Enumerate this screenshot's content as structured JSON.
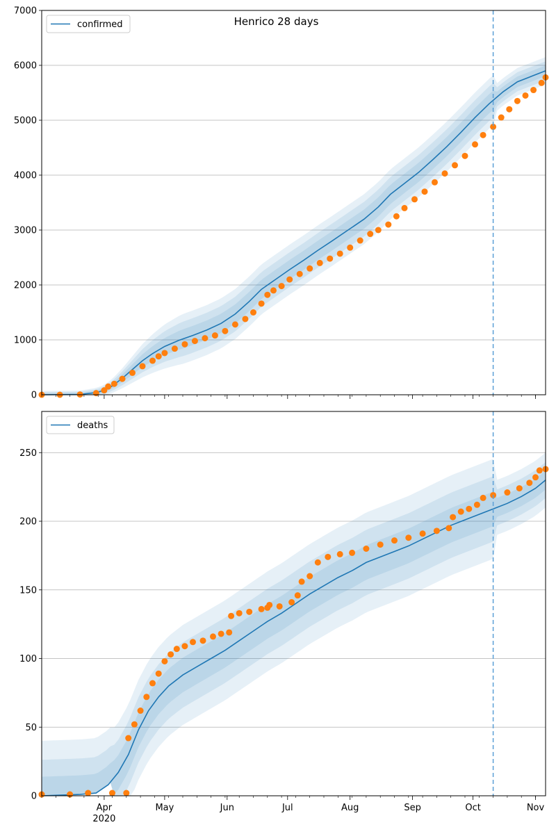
{
  "chart_data": [
    {
      "type": "line",
      "title": "Henrico 28 days",
      "xlabel": "",
      "ylabel": "",
      "xlim": [
        "2020-03-01",
        "2020-11-06"
      ],
      "ylim": [
        0,
        7000
      ],
      "yticks": [
        0,
        1000,
        2000,
        3000,
        4000,
        5000,
        6000,
        7000
      ],
      "grid": "horizontal",
      "legend": "top-left",
      "forecast_start": "2020-10-11",
      "series": [
        {
          "name": "confirmed",
          "kind": "model-median",
          "color": "#1f77b4",
          "points": [
            [
              "2020-03-01",
              0
            ],
            [
              "2020-03-20",
              5
            ],
            [
              "2020-03-28",
              40
            ],
            [
              "2020-04-01",
              80
            ],
            [
              "2020-04-05",
              160
            ],
            [
              "2020-04-10",
              300
            ],
            [
              "2020-04-15",
              460
            ],
            [
              "2020-04-20",
              620
            ],
            [
              "2020-04-25",
              750
            ],
            [
              "2020-05-01",
              880
            ],
            [
              "2020-05-08",
              990
            ],
            [
              "2020-05-15",
              1080
            ],
            [
              "2020-05-22",
              1180
            ],
            [
              "2020-05-29",
              1300
            ],
            [
              "2020-06-05",
              1470
            ],
            [
              "2020-06-12",
              1700
            ],
            [
              "2020-06-18",
              1920
            ],
            [
              "2020-06-25",
              2100
            ],
            [
              "2020-07-02",
              2280
            ],
            [
              "2020-07-09",
              2450
            ],
            [
              "2020-07-16",
              2630
            ],
            [
              "2020-07-23",
              2800
            ],
            [
              "2020-07-31",
              3000
            ],
            [
              "2020-08-08",
              3200
            ],
            [
              "2020-08-15",
              3420
            ],
            [
              "2020-08-21",
              3650
            ],
            [
              "2020-08-28",
              3850
            ],
            [
              "2020-09-04",
              4050
            ],
            [
              "2020-09-11",
              4280
            ],
            [
              "2020-09-18",
              4520
            ],
            [
              "2020-09-25",
              4780
            ],
            [
              "2020-10-02",
              5050
            ],
            [
              "2020-10-09",
              5300
            ],
            [
              "2020-10-16",
              5520
            ],
            [
              "2020-10-23",
              5700
            ],
            [
              "2020-10-30",
              5800
            ],
            [
              "2020-11-06",
              5900
            ]
          ]
        },
        {
          "name": "",
          "kind": "observed",
          "color": "#ff7f0e",
          "points": [
            [
              "2020-03-01",
              0
            ],
            [
              "2020-03-10",
              0
            ],
            [
              "2020-03-20",
              5
            ],
            [
              "2020-03-28",
              30
            ],
            [
              "2020-04-01",
              80
            ],
            [
              "2020-04-03",
              150
            ],
            [
              "2020-04-06",
              200
            ],
            [
              "2020-04-10",
              290
            ],
            [
              "2020-04-15",
              400
            ],
            [
              "2020-04-20",
              520
            ],
            [
              "2020-04-25",
              620
            ],
            [
              "2020-04-28",
              700
            ],
            [
              "2020-05-01",
              760
            ],
            [
              "2020-05-06",
              840
            ],
            [
              "2020-05-11",
              920
            ],
            [
              "2020-05-16",
              980
            ],
            [
              "2020-05-21",
              1030
            ],
            [
              "2020-05-26",
              1080
            ],
            [
              "2020-05-31",
              1160
            ],
            [
              "2020-06-05",
              1280
            ],
            [
              "2020-06-10",
              1380
            ],
            [
              "2020-06-14",
              1500
            ],
            [
              "2020-06-18",
              1660
            ],
            [
              "2020-06-21",
              1820
            ],
            [
              "2020-06-24",
              1900
            ],
            [
              "2020-06-28",
              1980
            ],
            [
              "2020-07-02",
              2100
            ],
            [
              "2020-07-07",
              2200
            ],
            [
              "2020-07-12",
              2300
            ],
            [
              "2020-07-17",
              2400
            ],
            [
              "2020-07-22",
              2480
            ],
            [
              "2020-07-27",
              2570
            ],
            [
              "2020-08-01",
              2680
            ],
            [
              "2020-08-06",
              2810
            ],
            [
              "2020-08-11",
              2930
            ],
            [
              "2020-08-15",
              3000
            ],
            [
              "2020-08-20",
              3100
            ],
            [
              "2020-08-24",
              3250
            ],
            [
              "2020-08-28",
              3400
            ],
            [
              "2020-09-02",
              3560
            ],
            [
              "2020-09-07",
              3700
            ],
            [
              "2020-09-12",
              3870
            ],
            [
              "2020-09-17",
              4030
            ],
            [
              "2020-09-22",
              4180
            ],
            [
              "2020-09-27",
              4350
            ],
            [
              "2020-10-02",
              4560
            ],
            [
              "2020-10-06",
              4730
            ],
            [
              "2020-10-11",
              4880
            ],
            [
              "2020-10-15",
              5050
            ],
            [
              "2020-10-19",
              5200
            ],
            [
              "2020-10-23",
              5350
            ],
            [
              "2020-10-27",
              5450
            ],
            [
              "2020-10-31",
              5550
            ],
            [
              "2020-11-04",
              5680
            ],
            [
              "2020-11-06",
              5780
            ]
          ]
        }
      ]
    },
    {
      "type": "line",
      "title": "",
      "xlabel": "",
      "ylabel": "",
      "xlim": [
        "2020-03-01",
        "2020-11-06"
      ],
      "ylim": [
        0,
        280
      ],
      "yticks": [
        0,
        50,
        100,
        150,
        200,
        250
      ],
      "xticks": [
        "Apr\n2020",
        "May",
        "Jun",
        "Jul",
        "Aug",
        "Sep",
        "Oct",
        "Nov"
      ],
      "grid": "horizontal",
      "legend": "top-left",
      "forecast_start": "2020-10-11",
      "series": [
        {
          "name": "deaths",
          "kind": "model-median",
          "color": "#1f77b4",
          "points": [
            [
              "2020-03-01",
              0
            ],
            [
              "2020-03-20",
              1
            ],
            [
              "2020-03-28",
              2
            ],
            [
              "2020-04-03",
              8
            ],
            [
              "2020-04-08",
              17
            ],
            [
              "2020-04-13",
              30
            ],
            [
              "2020-04-18",
              48
            ],
            [
              "2020-04-23",
              62
            ],
            [
              "2020-04-28",
              72
            ],
            [
              "2020-05-03",
              80
            ],
            [
              "2020-05-10",
              88
            ],
            [
              "2020-05-17",
              94
            ],
            [
              "2020-05-24",
              100
            ],
            [
              "2020-05-31",
              106
            ],
            [
              "2020-06-07",
              113
            ],
            [
              "2020-06-14",
              120
            ],
            [
              "2020-06-21",
              127
            ],
            [
              "2020-06-28",
              133
            ],
            [
              "2020-07-05",
              140
            ],
            [
              "2020-07-12",
              147
            ],
            [
              "2020-07-19",
              153
            ],
            [
              "2020-07-26",
              159
            ],
            [
              "2020-08-02",
              164
            ],
            [
              "2020-08-09",
              170
            ],
            [
              "2020-08-16",
              174
            ],
            [
              "2020-08-23",
              178
            ],
            [
              "2020-08-30",
              182
            ],
            [
              "2020-09-06",
              187
            ],
            [
              "2020-09-13",
              192
            ],
            [
              "2020-09-20",
              197
            ],
            [
              "2020-09-27",
              201
            ],
            [
              "2020-10-04",
              205
            ],
            [
              "2020-10-11",
              209
            ],
            [
              "2020-10-18",
              213
            ],
            [
              "2020-10-25",
              218
            ],
            [
              "2020-11-01",
              224
            ],
            [
              "2020-11-06",
              230
            ]
          ]
        },
        {
          "name": "",
          "kind": "observed",
          "color": "#ff7f0e",
          "points": [
            [
              "2020-03-01",
              1
            ],
            [
              "2020-03-15",
              1
            ],
            [
              "2020-03-24",
              2
            ],
            [
              "2020-04-05",
              2
            ],
            [
              "2020-04-12",
              2
            ],
            [
              "2020-04-13",
              42
            ],
            [
              "2020-04-16",
              52
            ],
            [
              "2020-04-19",
              62
            ],
            [
              "2020-04-22",
              72
            ],
            [
              "2020-04-25",
              82
            ],
            [
              "2020-04-28",
              89
            ],
            [
              "2020-05-01",
              98
            ],
            [
              "2020-05-04",
              103
            ],
            [
              "2020-05-07",
              107
            ],
            [
              "2020-05-11",
              109
            ],
            [
              "2020-05-15",
              112
            ],
            [
              "2020-05-20",
              113
            ],
            [
              "2020-05-25",
              116
            ],
            [
              "2020-05-29",
              118
            ],
            [
              "2020-06-02",
              119
            ],
            [
              "2020-06-03",
              131
            ],
            [
              "2020-06-07",
              133
            ],
            [
              "2020-06-12",
              134
            ],
            [
              "2020-06-18",
              136
            ],
            [
              "2020-06-21",
              137
            ],
            [
              "2020-06-22",
              139
            ],
            [
              "2020-06-27",
              138
            ],
            [
              "2020-07-03",
              141
            ],
            [
              "2020-07-06",
              146
            ],
            [
              "2020-07-08",
              156
            ],
            [
              "2020-07-12",
              160
            ],
            [
              "2020-07-16",
              170
            ],
            [
              "2020-07-21",
              174
            ],
            [
              "2020-07-27",
              176
            ],
            [
              "2020-08-02",
              177
            ],
            [
              "2020-08-09",
              180
            ],
            [
              "2020-08-16",
              183
            ],
            [
              "2020-08-23",
              186
            ],
            [
              "2020-08-30",
              188
            ],
            [
              "2020-09-06",
              191
            ],
            [
              "2020-09-13",
              193
            ],
            [
              "2020-09-19",
              195
            ],
            [
              "2020-09-21",
              203
            ],
            [
              "2020-09-25",
              207
            ],
            [
              "2020-09-29",
              209
            ],
            [
              "2020-10-03",
              212
            ],
            [
              "2020-10-06",
              217
            ],
            [
              "2020-10-11",
              219
            ],
            [
              "2020-10-18",
              221
            ],
            [
              "2020-10-24",
              224
            ],
            [
              "2020-10-29",
              228
            ],
            [
              "2020-11-01",
              232
            ],
            [
              "2020-11-03",
              237
            ],
            [
              "2020-11-06",
              238
            ]
          ]
        }
      ]
    }
  ]
}
